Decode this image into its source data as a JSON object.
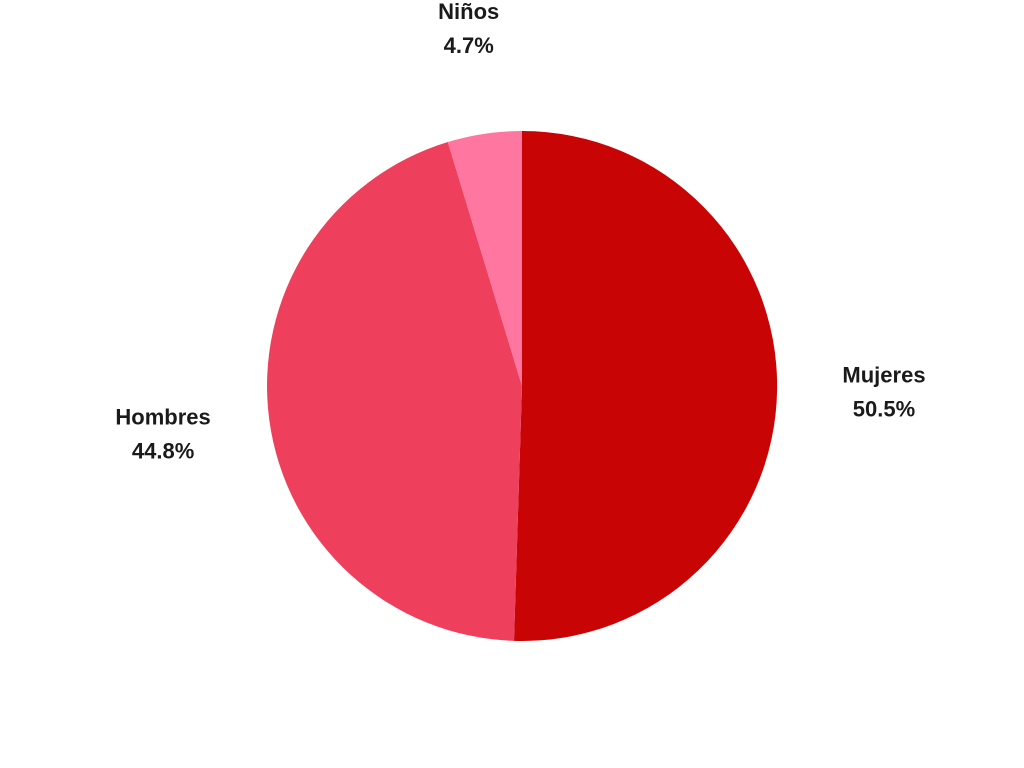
{
  "chart_data": {
    "type": "pie",
    "title": "",
    "start_angle_deg": 0,
    "direction": "clockwise",
    "legend": "none",
    "slices": [
      {
        "label": "Mujeres",
        "value": 50.5,
        "display": "50.5%",
        "color": "#c80404"
      },
      {
        "label": "Hombres",
        "value": 44.8,
        "display": "44.8%",
        "color": "#ee3f5c"
      },
      {
        "label": "Niños",
        "value": 4.7,
        "display": "4.7%",
        "color": "#ff77a0"
      }
    ]
  }
}
